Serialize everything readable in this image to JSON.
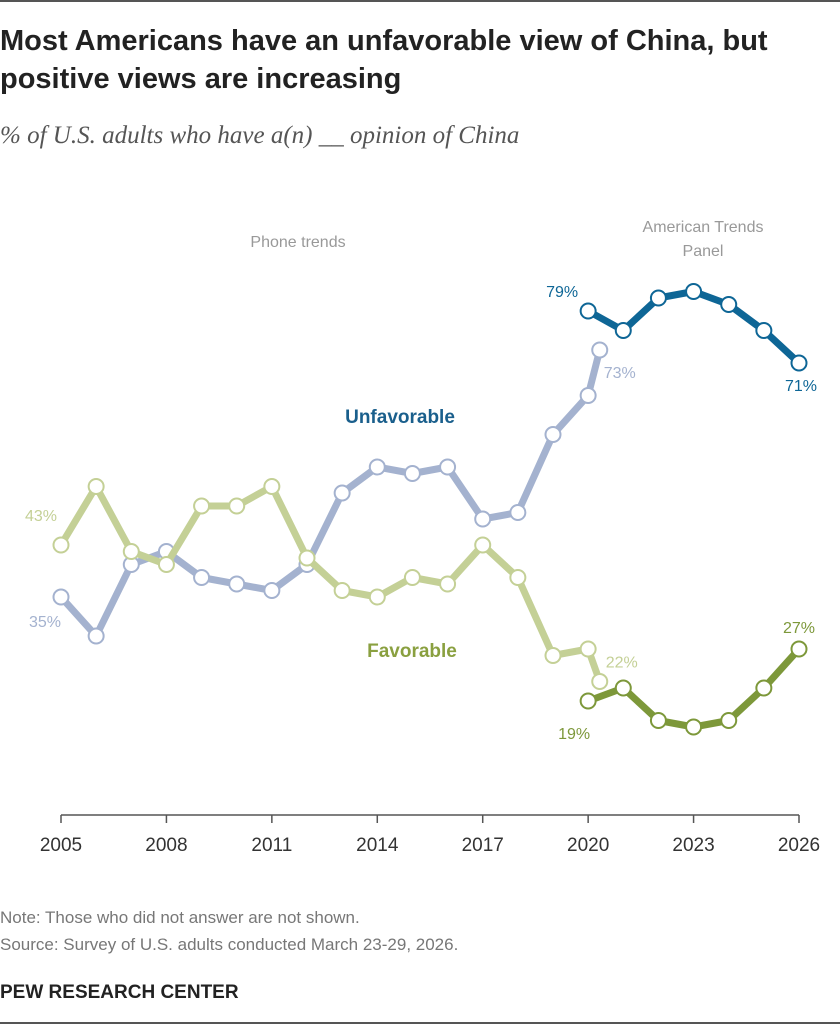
{
  "title": "Most Americans have an unfavorable view of China, but positive views are increasing",
  "subtitle": "% of U.S. adults who have a(n) __ opinion of China",
  "note": "Note: Those who did not answer are not shown.",
  "source": "Source: Survey of U.S. adults conducted March 23-29, 2026.",
  "brand": "PEW RESEARCH CENTER",
  "chart_data": {
    "type": "line",
    "xlim": [
      2005,
      2026
    ],
    "ylim": [
      0,
      100
    ],
    "xticks": [
      "2005",
      "2008",
      "2011",
      "2014",
      "2017",
      "2020",
      "2023",
      "2026"
    ],
    "annotations": {
      "phone": "Phone trends",
      "atp": "American Trends Panel",
      "unfavorable": "Unfavorable",
      "favorable": "Favorable"
    },
    "series": [
      {
        "name": "Unfavorable (phone)",
        "color": "#a4b2cf",
        "x": [
          2005,
          2006,
          2007,
          2008,
          2009,
          2010,
          2011,
          2012,
          2013,
          2014,
          2015,
          2016,
          2017,
          2018,
          2019,
          2020,
          2020.33
        ],
        "y": [
          35,
          29,
          40,
          42,
          38,
          37,
          36,
          40,
          51,
          55,
          54,
          55,
          47,
          48,
          60,
          66,
          73
        ],
        "labels": {
          "first": "35%",
          "last": "73%"
        }
      },
      {
        "name": "Favorable (phone)",
        "color": "#c4d096",
        "x": [
          2005,
          2006,
          2007,
          2008,
          2009,
          2010,
          2011,
          2012,
          2013,
          2014,
          2015,
          2016,
          2017,
          2018,
          2019,
          2020,
          2020.33
        ],
        "y": [
          43,
          52,
          42,
          40,
          49,
          49,
          52,
          41,
          36,
          35,
          38,
          37,
          43,
          38,
          26,
          27,
          22
        ],
        "labels": {
          "first": "43%",
          "last": "22%"
        }
      },
      {
        "name": "Unfavorable (ATP)",
        "color": "#0e6696",
        "x": [
          2020,
          2021,
          2022,
          2023,
          2024,
          2025,
          2026
        ],
        "y": [
          79,
          76,
          81,
          82,
          80,
          76,
          71
        ],
        "labels": {
          "first": "79%",
          "last": "71%"
        }
      },
      {
        "name": "Favorable (ATP)",
        "color": "#7d983a",
        "x": [
          2020,
          2021,
          2022,
          2023,
          2024,
          2025,
          2026
        ],
        "y": [
          19,
          21,
          16,
          15,
          16,
          21,
          27
        ],
        "labels": {
          "first": "19%",
          "last": "27%"
        }
      }
    ]
  }
}
